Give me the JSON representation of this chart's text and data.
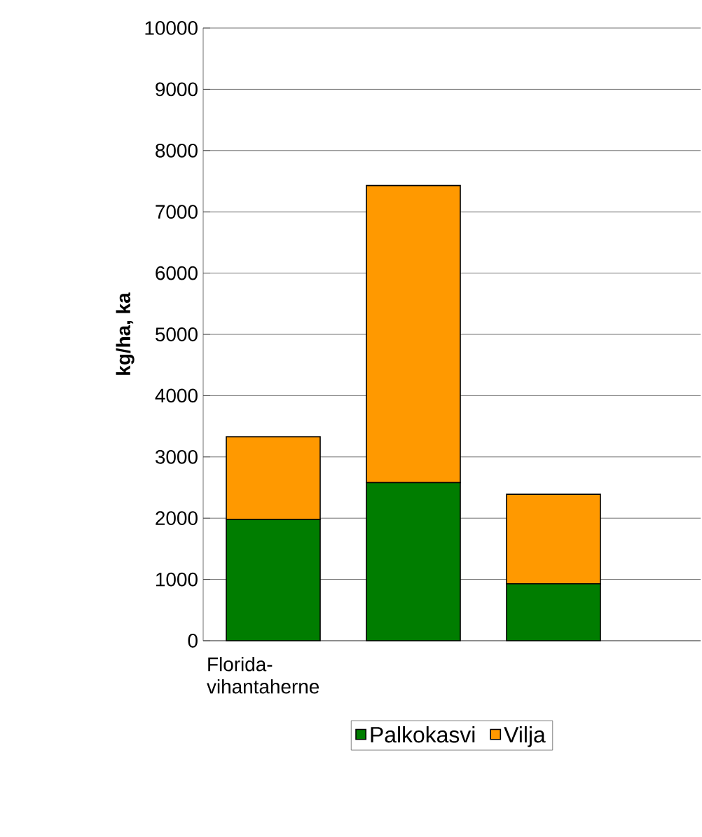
{
  "chart_data": {
    "type": "bar",
    "stacked": true,
    "ylabel": "kg/ha, ka",
    "categories": [
      "Florida-vihantaherne",
      null,
      null
    ],
    "series": [
      {
        "name": "Palkokasvi",
        "color": "#007d00",
        "values": [
          1980,
          2580,
          930
        ]
      },
      {
        "name": "Vilja",
        "color": "#ff9900",
        "values": [
          1350,
          4850,
          1460
        ]
      }
    ],
    "ylim": [
      0,
      10000
    ],
    "yticks": [
      0,
      1000,
      2000,
      3000,
      4000,
      5000,
      6000,
      7000,
      8000,
      9000,
      10000
    ],
    "grid": "y",
    "legend": "bottom"
  }
}
